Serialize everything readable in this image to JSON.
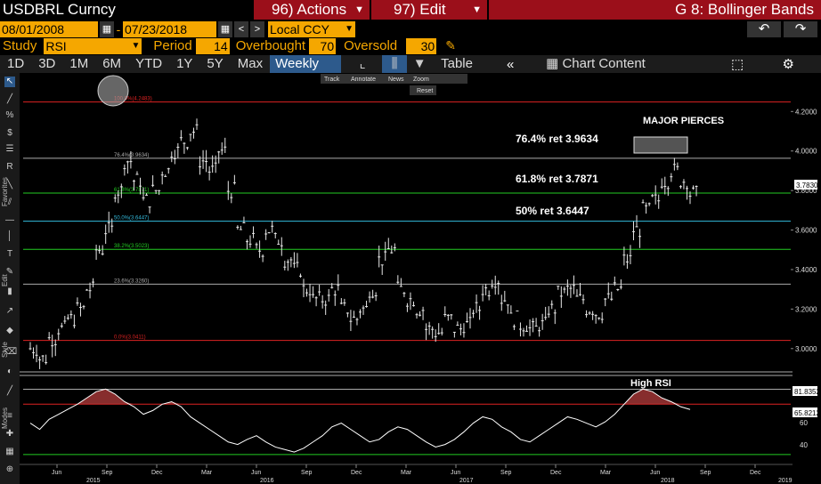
{
  "header": {
    "title": "USDBRL Curncy",
    "actions": "96) Actions",
    "edit": "97) Edit",
    "function": "G 8: Bollinger Bands"
  },
  "dates": {
    "start": "08/01/2008",
    "separator": "-",
    "end": "07/23/2018",
    "currency": "Local CCY"
  },
  "study": {
    "label": "Study",
    "value": "RSI",
    "period_label": "Period",
    "period": "14",
    "overbought_label": "Overbought",
    "overbought": "70",
    "oversold_label": "Oversold",
    "oversold": "30"
  },
  "toolbar": {
    "ranges": [
      "1D",
      "3D",
      "1M",
      "6M",
      "YTD",
      "1Y",
      "5Y",
      "Max"
    ],
    "frequency": "Weekly ▼",
    "table": "Table",
    "chart_content": "Chart Content"
  },
  "left_labels": {
    "favorites": "Favorites",
    "edit": "Edit",
    "style": "Style",
    "modes": "Modes"
  },
  "mini_toolbar": {
    "track": "Track",
    "annotate": "Annotate",
    "news": "News",
    "zoom": "Zoom",
    "reset": "Reset"
  },
  "annotations": {
    "major_pierces": "MAJOR PIERCES",
    "ret764": "76.4% ret 3.9634",
    "ret618": "61.8% ret 3.7871",
    "ret50": "50% ret 3.6447",
    "high_rsi": "High RSI"
  },
  "fib_levels": [
    {
      "label": "100.0%(4.2483)",
      "value": 4.2483,
      "color": "#d22"
    },
    {
      "label": "76.4%(3.9634)",
      "value": 3.9634,
      "color": "#aaa"
    },
    {
      "label": "61.8%(3.7871)",
      "value": 3.7871,
      "color": "#2c2"
    },
    {
      "label": "50.0%(3.6447)",
      "value": 3.6447,
      "color": "#3bd"
    },
    {
      "label": "38.2%(3.5023)",
      "value": 3.5023,
      "color": "#2c2"
    },
    {
      "label": "23.6%(3.3260)",
      "value": 3.326,
      "color": "#aaa"
    },
    {
      "label": "0.0%(3.0411)",
      "value": 3.0411,
      "color": "#d22"
    }
  ],
  "price_axis": {
    "ticks": [
      "4.2000",
      "4.0000",
      "3.8000",
      "3.6000",
      "3.4000",
      "3.2000",
      "3.0000"
    ],
    "last_price": "3.7830"
  },
  "rsi_axis": {
    "ticks": [
      "60",
      "40"
    ],
    "overbought_value": "81.8352",
    "last_value": "65.8212"
  },
  "x_axis": {
    "months": [
      "Jun",
      "Sep",
      "Dec",
      "Mar",
      "Jun",
      "Sep",
      "Dec",
      "Mar",
      "Jun",
      "Sep",
      "Dec",
      "Mar",
      "Jun",
      "Sep",
      "Dec"
    ],
    "years": [
      "2015",
      "2016",
      "2017",
      "2018",
      "2019"
    ]
  },
  "chart_data": {
    "type": "line",
    "price_range": [
      2.9,
      4.35
    ],
    "rsi_range": [
      25,
      90
    ],
    "series": [
      {
        "values": [
          3.0,
          2.95,
          3.05,
          3.1,
          3.15,
          3.2,
          3.3,
          3.5,
          3.6,
          3.8,
          3.95,
          3.85,
          3.75,
          3.8,
          3.9,
          4.0,
          4.05,
          4.1,
          3.95,
          3.9,
          4.0,
          3.8,
          3.6,
          3.55,
          3.5,
          3.6,
          3.55,
          3.45,
          3.4,
          3.3,
          3.25,
          3.25,
          3.3,
          3.2,
          3.15,
          3.2,
          3.3,
          3.45,
          3.5,
          3.3,
          3.25,
          3.2,
          3.1,
          3.08,
          3.15,
          3.1,
          3.12,
          3.2,
          3.3,
          3.35,
          3.25,
          3.15,
          3.12,
          3.1,
          3.12,
          3.2,
          3.28,
          3.3,
          3.25,
          3.2,
          3.18,
          3.25,
          3.3,
          3.45,
          3.6,
          3.7,
          3.75,
          3.85,
          3.9,
          3.85,
          3.783
        ]
      },
      {
        "values": [
          55,
          50,
          58,
          62,
          66,
          70,
          75,
          80,
          82,
          78,
          72,
          68,
          62,
          65,
          70,
          72,
          68,
          60,
          55,
          50,
          45,
          40,
          38,
          42,
          45,
          40,
          36,
          34,
          32,
          35,
          40,
          45,
          52,
          55,
          50,
          45,
          40,
          42,
          48,
          52,
          50,
          45,
          40,
          36,
          38,
          42,
          48,
          55,
          60,
          58,
          52,
          48,
          42,
          40,
          45,
          50,
          55,
          60,
          58,
          55,
          52,
          56,
          62,
          70,
          78,
          82,
          80,
          75,
          72,
          68,
          65.8
        ]
      }
    ]
  }
}
